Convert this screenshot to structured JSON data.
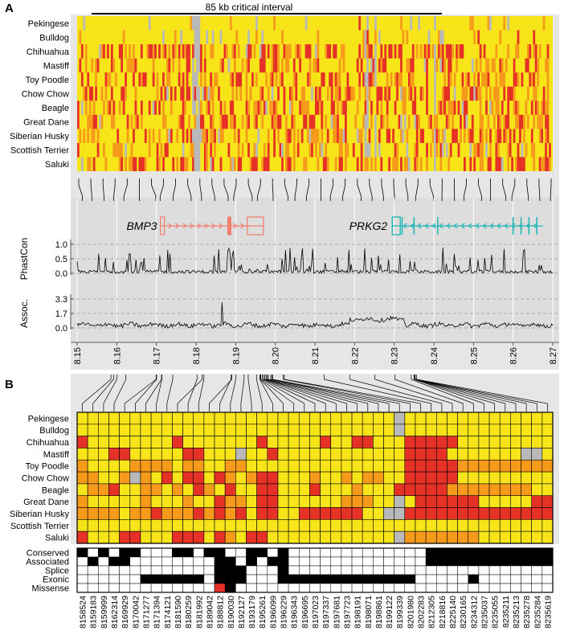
{
  "panels": {
    "a_label": "A",
    "b_label": "B"
  },
  "colors": {
    "yellow": "#f7e51a",
    "orange": "#f59a1a",
    "red": "#e63127",
    "gray": "#b9b9b9",
    "bmp3": "#f07f6f",
    "prkg2": "#1fb5b8",
    "panel_bg": "#e6e6e6",
    "track_bg": "#dddddd"
  },
  "chart_data": [
    {
      "type": "heatmap",
      "panel": "A",
      "title": "85 kb critical interval",
      "rows": [
        "Pekingese",
        "Bulldog",
        "Chihuahua",
        "Mastiff",
        "Toy Poodle",
        "Chow Chow",
        "Beagle",
        "Great Dane",
        "Siberian Husky",
        "Scottish Terrier",
        "Saluki"
      ],
      "color_levels": [
        "yellow",
        "orange",
        "red",
        "gray"
      ],
      "columns": 240
    },
    {
      "type": "line",
      "panel": "A",
      "genes": [
        {
          "name": "BMP3",
          "start": 8.171,
          "end": 8.197,
          "strand": "+"
        },
        {
          "name": "PRKG2",
          "start": 8.2295,
          "end": 8.2675,
          "strand": "-"
        }
      ],
      "tracks": [
        {
          "name": "PhastCon",
          "ylabel": "PhastCon",
          "yticks": [
            "1.0",
            "0.5",
            "0.0"
          ],
          "ylim": [
            0,
            1.1
          ]
        },
        {
          "name": "Assoc.",
          "ylabel": "Assoc.",
          "yticks": [
            "3.3",
            "1.7",
            "0.0"
          ],
          "ylim": [
            0,
            3.5
          ]
        }
      ],
      "xticks": [
        "8.15",
        "8.16",
        "8.17",
        "8.18",
        "8.19",
        "8.20",
        "8.21",
        "8.22",
        "8.23",
        "8.24",
        "8.25",
        "8.26",
        "8.27"
      ],
      "xlim": [
        8.15,
        8.27
      ]
    },
    {
      "type": "heatmap",
      "panel": "B",
      "rows": [
        "Pekingese",
        "Bulldog",
        "Chihuahua",
        "Mastiff",
        "Toy Poodle",
        "Chow Chow",
        "Beagle",
        "Great Dane",
        "Siberian Husky",
        "Scottish Terrier",
        "Saluki"
      ],
      "columns": [
        "8158524",
        "8159183",
        "8159999",
        "8162314",
        "8169929",
        "8170042",
        "8171277",
        "8171394",
        "8174121",
        "8181590",
        "8180259",
        "8181992",
        "8189042",
        "8188812",
        "8190030",
        "8192127",
        "8193179",
        "8195261",
        "8196099",
        "8196229",
        "8196343",
        "8196695",
        "8197023",
        "8197337",
        "8197681",
        "8197723",
        "8198191",
        "8198071",
        "8198861",
        "8199122",
        "8199339",
        "8201980",
        "8202283",
        "8212305",
        "8218816",
        "8225140",
        "8230165",
        "8234312",
        "8235037",
        "8235055",
        "8235211",
        "8235213",
        "8235278",
        "8235284",
        "8235619"
      ],
      "cells": [
        "yyyyyyyyyyyyyyyyyyyyyyyyyyyyyygyyyyyyyyyyyyyy",
        "yyyyyyyyyyyyyyyyyyyyyyyyyyyyyygyyyyyyyyyyyyyy",
        "ryyyyyyyyryyyyyyyryyyyyryyrryyyrrrrryyyyyyyyy",
        "yyyrryyyyyrryyygyyryyyyyyyyyyyyrrrryyyyyyyggy",
        "oyyyyooooyooyyooyyyyyyyyyyyyyyyrrrrrooooooooo",
        "ooyyogoyryrryroyorryyyoyyoyooyyrrrrryyyyyyyyy",
        "yooryyooyoyroyryyrryyyryyyoyyyrrrrrooooooooyy",
        "oyyyyyoyyyoyyrooyrryyyyyyoooyygyrrrrrryyyyyrr",
        "ooooyoorooorororyrryyrrrrrryyggrrrrrrrrrrrrrr",
        "yyyyyyyyyyyyyyyyyyyyyyyyyyyyyyyyyyyyyyyyyyyyy",
        "ryyyrryyyrrryroyrryyyyyyyyyyyygoooooooyyyyyyy"
      ]
    },
    {
      "type": "table",
      "panel": "B",
      "rows": [
        "Conserved",
        "Associated",
        "Splice",
        "Exonic",
        "Missense"
      ],
      "columns": 45
    }
  ]
}
